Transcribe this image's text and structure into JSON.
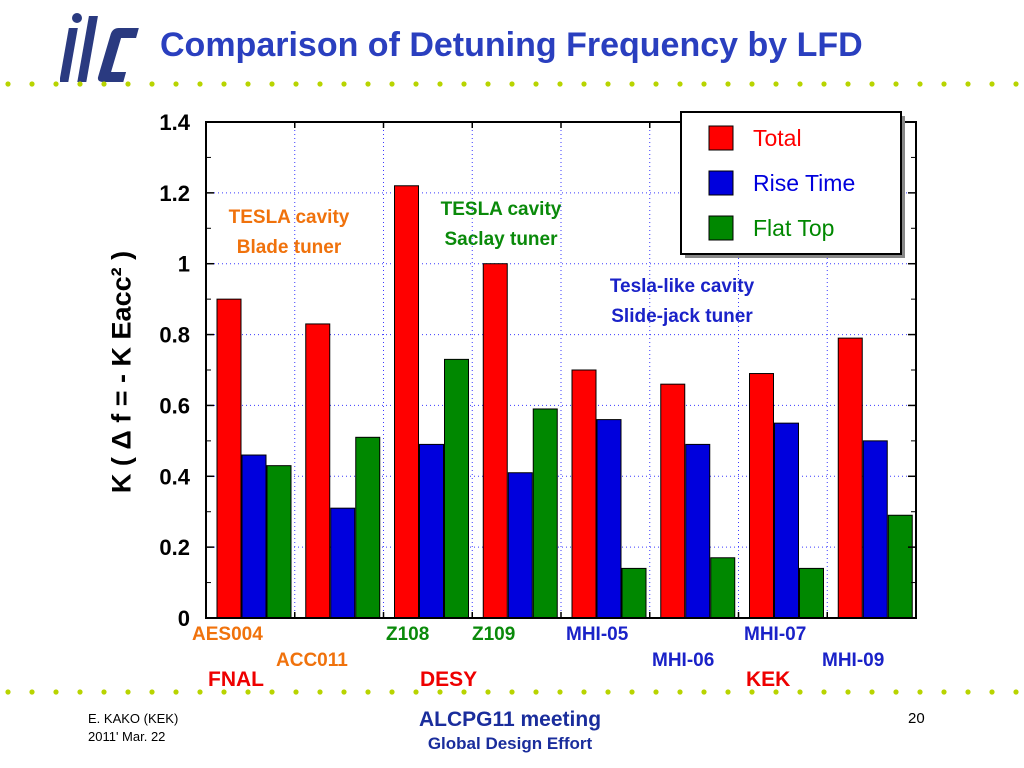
{
  "header": {
    "title": "Comparison of Detuning Frequency by LFD"
  },
  "chart_data": {
    "type": "bar",
    "categories": [
      "AES004",
      "ACC011",
      "Z108",
      "Z109",
      "MHI-05",
      "MHI-06",
      "MHI-07",
      "MHI-09"
    ],
    "category_colors": [
      "#f0720c",
      "#f0720c",
      "#0a8a0a",
      "#0a8a0a",
      "#1a22c8",
      "#1a22c8",
      "#1a22c8",
      "#1a22c8"
    ],
    "series": [
      {
        "name": "Total",
        "color": "#ff0000",
        "values": [
          0.9,
          0.83,
          1.22,
          1.0,
          0.7,
          0.66,
          0.69,
          0.79
        ]
      },
      {
        "name": "Rise Time",
        "color": "#0000dd",
        "values": [
          0.46,
          0.31,
          0.49,
          0.41,
          0.56,
          0.49,
          0.55,
          0.5
        ]
      },
      {
        "name": "Flat Top",
        "color": "#008800",
        "values": [
          0.43,
          0.51,
          0.73,
          0.59,
          0.14,
          0.17,
          0.14,
          0.29
        ]
      }
    ],
    "ylabel": "K ( Δ f = - K Eacc² )",
    "ylim": [
      0,
      1.4
    ],
    "yticks": [
      "0",
      "0.2",
      "0.4",
      "0.6",
      "0.8",
      "1",
      "1.2",
      "1.4"
    ],
    "grid": true,
    "legend": "top-right",
    "groups": [
      {
        "label": "FNAL",
        "color": "#ee0000"
      },
      {
        "label": "DESY",
        "color": "#ee0000"
      },
      {
        "label": "KEK",
        "color": "#ee0000"
      }
    ],
    "annotations": [
      {
        "line1": "TESLA cavity",
        "line2": "Blade tuner",
        "color": "#f0720c"
      },
      {
        "line1": "TESLA cavity",
        "line2": "Saclay tuner",
        "color": "#0a8a0a"
      },
      {
        "line1": "Tesla-like cavity",
        "line2": "Slide-jack tuner",
        "color": "#1a22c8"
      }
    ]
  },
  "footer": {
    "author": "E. KAKO (KEK)",
    "date": "2011' Mar. 22",
    "meeting": "ALCPG11 meeting",
    "org": "Global Design Effort",
    "page": "20"
  }
}
